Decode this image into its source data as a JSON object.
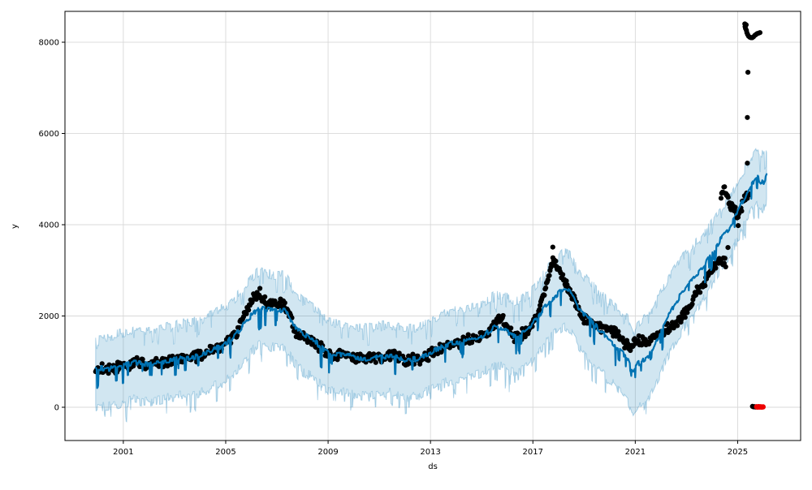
{
  "figure": {
    "background": "#ffffff",
    "kind": "prophet-forecast-plot"
  },
  "chart_data": {
    "type": "line",
    "title": "",
    "xlabel": "ds",
    "ylabel": "y",
    "grid": true,
    "legend": "none",
    "xlim": [
      1998.72,
      2027.46
    ],
    "ylim": [
      -729,
      8676
    ],
    "x_ticks": [
      2001,
      2005,
      2009,
      2013,
      2017,
      2021,
      2025
    ],
    "y_ticks": [
      0,
      2000,
      4000,
      6000,
      8000
    ],
    "colors": {
      "observed": "#000000",
      "forecast_line": "#0072B2",
      "uncertainty_fill": "rgba(0,114,178,0.18)",
      "uncertainty_edge": "rgba(0,114,178,0.28)",
      "anomaly": "#ee0000",
      "grid": "#d9d9d9",
      "spine": "#000000"
    },
    "texture": {
      "seed": 11,
      "line_zigzag": 55,
      "line_dip_prob": 0.05,
      "line_dip_depth": 300,
      "band_edge_noise": 110,
      "band_dip_prob": 0.05,
      "band_dip_depth": 260,
      "scatter_noise_sigma": 80,
      "scatter_points_per_year": 36,
      "samples_per_year": 52,
      "dot_radius": 3.1,
      "anomaly_dot_radius": 3.3
    },
    "series": [
      {
        "name": "yhat",
        "type": "line",
        "color_key": "forecast_line",
        "trend": [
          [
            1999.92,
            870
          ],
          [
            2000.4,
            840
          ],
          [
            2000.9,
            900
          ],
          [
            2001.4,
            990
          ],
          [
            2001.9,
            940
          ],
          [
            2002.4,
            980
          ],
          [
            2002.9,
            1040
          ],
          [
            2003.4,
            1080
          ],
          [
            2003.9,
            1110
          ],
          [
            2004.4,
            1230
          ],
          [
            2004.9,
            1360
          ],
          [
            2005.4,
            1600
          ],
          [
            2005.9,
            1950
          ],
          [
            2006.3,
            2180
          ],
          [
            2006.8,
            2120
          ],
          [
            2007.3,
            2130
          ],
          [
            2007.7,
            1780
          ],
          [
            2008.1,
            1580
          ],
          [
            2008.5,
            1440
          ],
          [
            2009.0,
            1180
          ],
          [
            2009.5,
            1160
          ],
          [
            2010.0,
            1110
          ],
          [
            2010.5,
            1060
          ],
          [
            2011.0,
            1110
          ],
          [
            2011.5,
            1130
          ],
          [
            2012.0,
            1030
          ],
          [
            2012.5,
            1060
          ],
          [
            2013.0,
            1200
          ],
          [
            2013.5,
            1340
          ],
          [
            2014.0,
            1420
          ],
          [
            2014.5,
            1470
          ],
          [
            2015.0,
            1560
          ],
          [
            2015.5,
            1740
          ],
          [
            2015.9,
            1680
          ],
          [
            2016.3,
            1560
          ],
          [
            2016.8,
            1690
          ],
          [
            2017.2,
            1980
          ],
          [
            2017.6,
            2300
          ],
          [
            2018.0,
            2500
          ],
          [
            2018.25,
            2620
          ],
          [
            2018.5,
            2500
          ],
          [
            2018.8,
            2150
          ],
          [
            2019.1,
            2000
          ],
          [
            2019.5,
            1750
          ],
          [
            2019.9,
            1520
          ],
          [
            2020.3,
            1300
          ],
          [
            2020.7,
            1080
          ],
          [
            2020.92,
            760
          ],
          [
            2021.1,
            950
          ],
          [
            2021.5,
            1100
          ],
          [
            2021.9,
            1550
          ],
          [
            2022.3,
            2000
          ],
          [
            2022.7,
            2400
          ],
          [
            2023.1,
            2700
          ],
          [
            2023.5,
            2950
          ],
          [
            2023.9,
            3300
          ],
          [
            2024.3,
            3650
          ],
          [
            2024.7,
            3950
          ],
          [
            2025.1,
            4400
          ],
          [
            2025.5,
            4850
          ],
          [
            2025.75,
            5050
          ],
          [
            2025.9,
            4950
          ],
          [
            2026.0,
            4900
          ],
          [
            2026.15,
            5100
          ]
        ]
      },
      {
        "name": "uncertainty_interval",
        "type": "band",
        "fill_key": "uncertainty_fill",
        "edge_key": "uncertainty_edge",
        "halfwidth_upper": [
          [
            1999.92,
            700
          ],
          [
            2006.0,
            820
          ],
          [
            2010.0,
            660
          ],
          [
            2014.0,
            700
          ],
          [
            2018.0,
            780
          ],
          [
            2020.5,
            850
          ],
          [
            2021.5,
            900
          ],
          [
            2023.0,
            750
          ],
          [
            2024.5,
            640
          ],
          [
            2026.15,
            600
          ]
        ],
        "halfwidth_lower": [
          [
            1999.92,
            840
          ],
          [
            2006.0,
            800
          ],
          [
            2010.0,
            830
          ],
          [
            2014.0,
            800
          ],
          [
            2018.0,
            820
          ],
          [
            2020.5,
            900
          ],
          [
            2021.5,
            950
          ],
          [
            2023.0,
            800
          ],
          [
            2024.5,
            600
          ],
          [
            2026.15,
            560
          ]
        ]
      },
      {
        "name": "observed",
        "type": "scatter",
        "color_key": "observed",
        "segments": [
          [
            [
              1999.92,
              830
            ],
            [
              2000.3,
              850
            ],
            [
              2000.7,
              840
            ],
            [
              2001.1,
              920
            ],
            [
              2001.5,
              990
            ],
            [
              2001.9,
              930
            ],
            [
              2002.3,
              970
            ],
            [
              2002.7,
              1000
            ],
            [
              2003.1,
              1050
            ],
            [
              2003.5,
              1070
            ],
            [
              2003.9,
              1110
            ],
            [
              2004.3,
              1210
            ],
            [
              2004.7,
              1280
            ],
            [
              2005.0,
              1400
            ],
            [
              2005.4,
              1620
            ],
            [
              2005.8,
              2080
            ],
            [
              2006.1,
              2430
            ],
            [
              2006.35,
              2480
            ],
            [
              2006.6,
              2280
            ],
            [
              2006.9,
              2300
            ],
            [
              2007.2,
              2250
            ],
            [
              2007.5,
              2050
            ],
            [
              2007.75,
              1600
            ],
            [
              2008.1,
              1560
            ],
            [
              2008.5,
              1400
            ],
            [
              2008.9,
              1230
            ],
            [
              2009.2,
              1070
            ],
            [
              2009.6,
              1180
            ],
            [
              2010.0,
              1110
            ],
            [
              2010.4,
              1060
            ],
            [
              2010.8,
              1090
            ],
            [
              2011.2,
              1110
            ],
            [
              2011.6,
              1130
            ],
            [
              2012.0,
              1010
            ],
            [
              2012.4,
              1060
            ],
            [
              2012.8,
              1080
            ],
            [
              2013.1,
              1200
            ],
            [
              2013.5,
              1330
            ],
            [
              2013.9,
              1400
            ],
            [
              2014.3,
              1450
            ],
            [
              2014.7,
              1490
            ],
            [
              2015.1,
              1580
            ],
            [
              2015.5,
              1820
            ],
            [
              2015.75,
              1950
            ],
            [
              2016.0,
              1760
            ],
            [
              2016.25,
              1530
            ],
            [
              2016.6,
              1620
            ],
            [
              2016.9,
              1750
            ],
            [
              2017.2,
              2050
            ],
            [
              2017.5,
              2600
            ],
            [
              2017.75,
              3200
            ],
            [
              2017.9,
              3150
            ],
            [
              2018.1,
              2900
            ],
            [
              2018.35,
              2600
            ],
            [
              2018.6,
              2400
            ],
            [
              2018.8,
              2050
            ],
            [
              2019.1,
              1900
            ],
            [
              2019.5,
              1780
            ],
            [
              2019.9,
              1720
            ],
            [
              2020.3,
              1600
            ],
            [
              2020.6,
              1380
            ],
            [
              2020.9,
              1350
            ],
            [
              2021.1,
              1480
            ],
            [
              2021.4,
              1380
            ],
            [
              2021.7,
              1520
            ],
            [
              2022.0,
              1640
            ],
            [
              2022.4,
              1750
            ],
            [
              2022.8,
              1980
            ],
            [
              2023.1,
              2200
            ],
            [
              2023.4,
              2500
            ],
            [
              2023.7,
              2750
            ],
            [
              2024.0,
              3050
            ],
            [
              2024.25,
              3200
            ],
            [
              2024.55,
              3150
            ]
          ],
          [
            [
              2024.35,
              4600
            ],
            [
              2024.45,
              4800
            ],
            [
              2024.55,
              4700
            ],
            [
              2024.65,
              4500
            ],
            [
              2024.75,
              4400
            ],
            [
              2024.9,
              4300
            ],
            [
              2025.0,
              4250
            ],
            [
              2025.15,
              4400
            ],
            [
              2025.3,
              4600
            ],
            [
              2025.45,
              4750
            ]
          ]
        ]
      },
      {
        "name": "observed_outliers",
        "type": "scatter",
        "color_key": "observed",
        "points": [
          [
            2017.78,
            3510
          ],
          [
            2024.62,
            3500
          ],
          [
            2024.98,
            4150
          ],
          [
            2025.02,
            3980
          ],
          [
            2025.38,
            5350
          ],
          [
            2025.38,
            6350
          ],
          [
            2025.4,
            7340
          ],
          [
            2025.28,
            8400
          ],
          [
            2025.29,
            8340
          ],
          [
            2025.31,
            8300
          ],
          [
            2025.33,
            8380
          ],
          [
            2025.34,
            8260
          ],
          [
            2025.36,
            8210
          ],
          [
            2025.39,
            8170
          ],
          [
            2025.43,
            8130
          ],
          [
            2025.47,
            8110
          ],
          [
            2025.52,
            8100
          ],
          [
            2025.57,
            8100
          ],
          [
            2025.62,
            8120
          ],
          [
            2025.67,
            8150
          ],
          [
            2025.72,
            8170
          ],
          [
            2025.77,
            8190
          ],
          [
            2025.82,
            8200
          ],
          [
            2025.87,
            8210
          ],
          [
            2025.58,
            20
          ],
          [
            2025.62,
            8
          ],
          [
            2025.66,
            14
          ],
          [
            2025.7,
            4
          ],
          [
            2025.74,
            10
          ],
          [
            2025.78,
            6
          ],
          [
            2025.82,
            12
          ]
        ]
      },
      {
        "name": "anomalies",
        "type": "scatter",
        "color_key": "anomaly",
        "points": [
          [
            2025.74,
            10
          ],
          [
            2025.78,
            4
          ],
          [
            2025.82,
            12
          ],
          [
            2025.86,
            6
          ],
          [
            2025.9,
            10
          ],
          [
            2025.94,
            4
          ],
          [
            2025.99,
            8
          ]
        ]
      }
    ]
  }
}
